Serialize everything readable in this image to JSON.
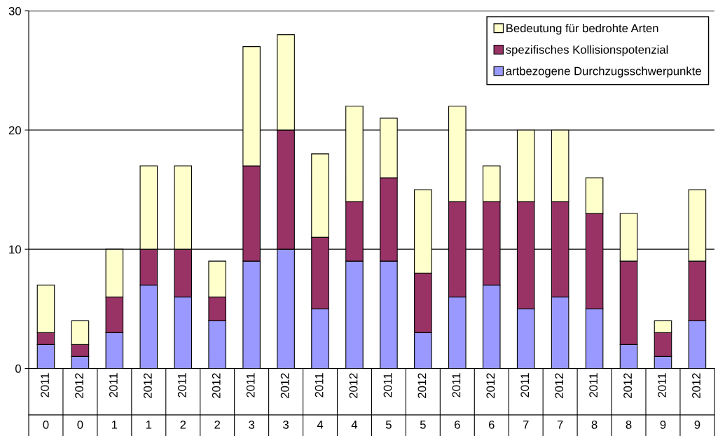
{
  "chart_data": {
    "type": "bar",
    "stacked": true,
    "categories": [
      "2011\n0",
      "2012\n0",
      "2011\n1",
      "2012\n1",
      "2011\n2",
      "2012\n2",
      "2011\n3",
      "2012\n3",
      "2011\n4",
      "2012\n4",
      "2011\n5",
      "2012\n5",
      "2011\n6",
      "2012\n6",
      "2011\n7",
      "2012\n7",
      "2011\n8",
      "2012\n8",
      "2011\n9",
      "2012\n9"
    ],
    "series": [
      {
        "name": "artbezogene Durchzugsschwerpunkte",
        "color": "#9999ff",
        "values": [
          2,
          1,
          3,
          7,
          6,
          4,
          9,
          10,
          5,
          9,
          9,
          3,
          6,
          7,
          5,
          6,
          5,
          2,
          1,
          4
        ]
      },
      {
        "name": "spezifisches Kollisionspotenzial",
        "color": "#993366",
        "values": [
          1,
          1,
          3,
          3,
          4,
          2,
          8,
          10,
          6,
          5,
          7,
          5,
          8,
          7,
          9,
          8,
          8,
          7,
          2,
          5
        ]
      },
      {
        "name": "Bedeutung für bedrohte Arten",
        "color": "#ffffcc",
        "values": [
          4,
          2,
          4,
          7,
          7,
          3,
          10,
          8,
          7,
          8,
          5,
          7,
          8,
          3,
          6,
          6,
          3,
          4,
          1,
          6
        ]
      }
    ],
    "ylim": [
      0,
      30
    ],
    "yticks": [
      0,
      10,
      20,
      30
    ],
    "grid": "y",
    "legend": "top right"
  }
}
